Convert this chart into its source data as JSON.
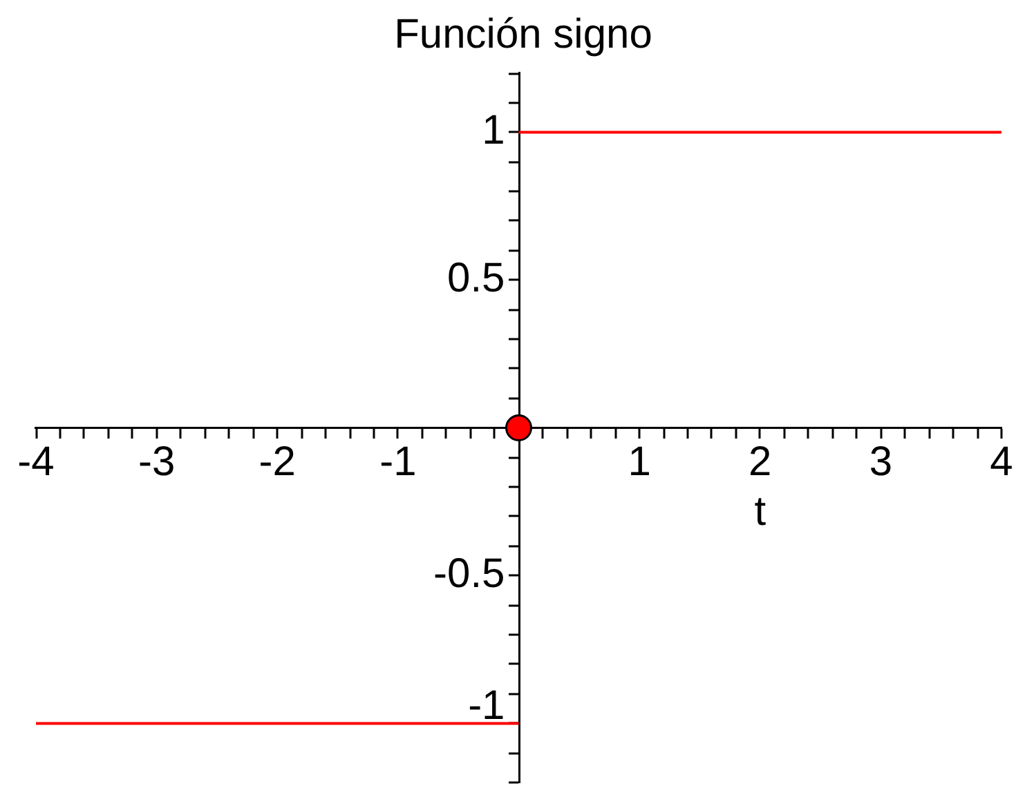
{
  "chart_data": {
    "type": "line",
    "title": "Función signo",
    "xlabel": "t",
    "xlim": [
      -4,
      4
    ],
    "xticks": [
      -4,
      {
        "value": -3.8,
        "label": null
      },
      {
        "value": -3.6,
        "label": null
      },
      {
        "value": -3.4,
        "label": null
      },
      {
        "value": -3.2,
        "label": null
      },
      -3,
      {
        "value": -2.8,
        "label": null
      },
      {
        "value": -2.6,
        "label": null
      },
      {
        "value": -2.4,
        "label": null
      },
      {
        "value": -2.2,
        "label": null
      },
      -2,
      {
        "value": -1.8,
        "label": null
      },
      {
        "value": -1.6,
        "label": null
      },
      {
        "value": -1.4,
        "label": null
      },
      {
        "value": -1.2,
        "label": null
      },
      -1,
      {
        "value": -0.8,
        "label": null
      },
      {
        "value": -0.6,
        "label": null
      },
      {
        "value": -0.4,
        "label": null
      },
      {
        "value": -0.2,
        "label": null
      },
      {
        "value": 0.2,
        "label": null
      },
      {
        "value": 0.4,
        "label": null
      },
      {
        "value": 0.6,
        "label": null
      },
      {
        "value": 0.8,
        "label": null
      },
      1,
      {
        "value": 1.2,
        "label": null
      },
      {
        "value": 1.4,
        "label": null
      },
      {
        "value": 1.6,
        "label": null
      },
      {
        "value": 1.8,
        "label": null
      },
      2,
      {
        "value": 2.2,
        "label": null
      },
      {
        "value": 2.4,
        "label": null
      },
      {
        "value": 2.6,
        "label": null
      },
      {
        "value": 2.8,
        "label": null
      },
      3,
      {
        "value": 3.2,
        "label": null
      },
      {
        "value": 3.4,
        "label": null
      },
      {
        "value": 3.6,
        "label": null
      },
      {
        "value": 3.8,
        "label": null
      },
      4
    ],
    "ylim": [
      -1.2,
      1.2
    ],
    "yticks": [
      {
        "value": -1.2,
        "label": null
      },
      {
        "value": -1.1,
        "label": null
      },
      -1,
      {
        "value": -0.9,
        "label": null
      },
      {
        "value": -0.8,
        "label": null
      },
      {
        "value": -0.7,
        "label": null
      },
      {
        "value": -0.6,
        "label": null
      },
      -0.5,
      {
        "value": -0.4,
        "label": null
      },
      {
        "value": -0.3,
        "label": null
      },
      {
        "value": -0.2,
        "label": null
      },
      {
        "value": -0.1,
        "label": null
      },
      {
        "value": 0.1,
        "label": null
      },
      {
        "value": 0.2,
        "label": null
      },
      {
        "value": 0.3,
        "label": null
      },
      {
        "value": 0.4,
        "label": null
      },
      0.5,
      {
        "value": 0.6,
        "label": null
      },
      {
        "value": 0.7,
        "label": null
      },
      {
        "value": 0.8,
        "label": null
      },
      {
        "value": 0.9,
        "label": null
      },
      1,
      {
        "value": 1.1,
        "label": null
      },
      {
        "value": 1.2,
        "label": null
      }
    ],
    "series": [
      {
        "type": "line",
        "color": "#ff0000",
        "x": [
          -4,
          0
        ],
        "values": [
          -1,
          -1
        ],
        "marker": "none"
      },
      {
        "type": "line",
        "color": "#ff0000",
        "x": [
          0,
          4
        ],
        "values": [
          1,
          1
        ],
        "marker": "none"
      },
      {
        "type": "scatter",
        "color": "#ff0000",
        "x": [
          0
        ],
        "values": [
          0
        ],
        "marker": "circle"
      }
    ]
  }
}
